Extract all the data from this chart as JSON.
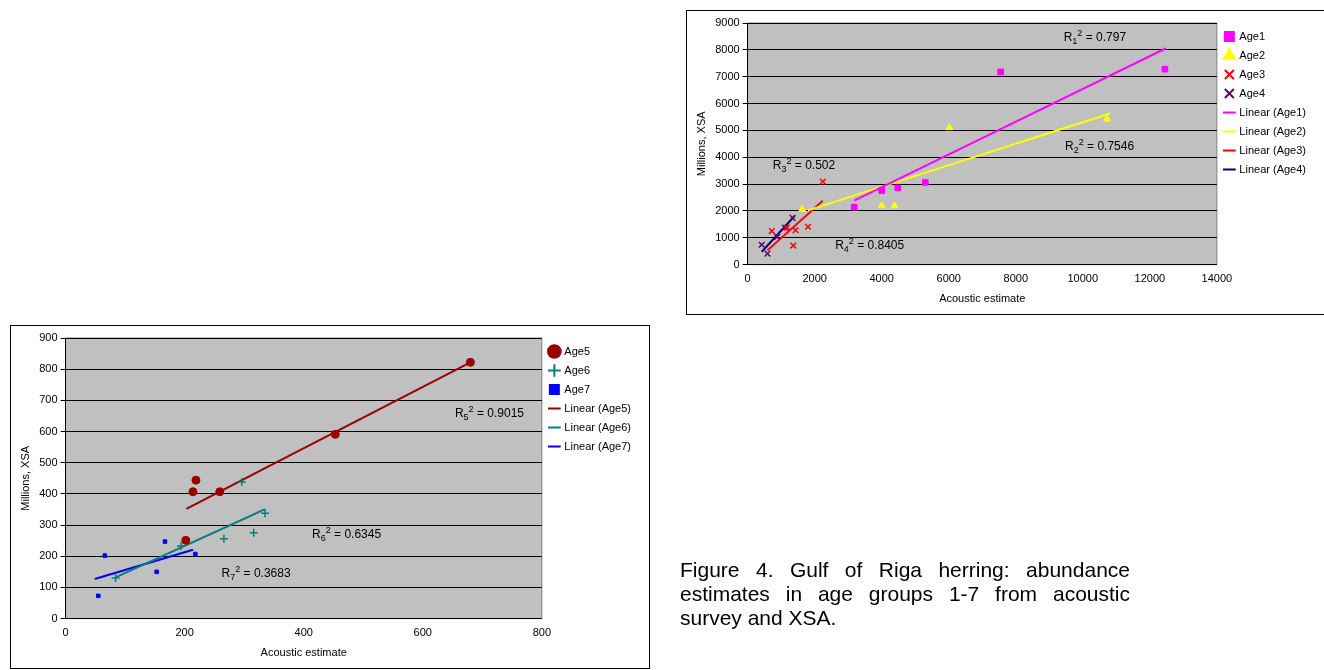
{
  "chart_data": [
    {
      "type": "scatter",
      "xlabel": "Acoustic estimate",
      "ylabel": "Millions, XSA",
      "xlim": [
        0,
        14000
      ],
      "xticks": [
        0,
        2000,
        4000,
        6000,
        8000,
        10000,
        12000,
        14000
      ],
      "ylim": [
        0,
        9000
      ],
      "yticks": [
        0,
        1000,
        2000,
        3000,
        4000,
        5000,
        6000,
        7000,
        8000,
        9000
      ],
      "grid": "y",
      "legend": "right",
      "series": [
        {
          "name": "Age1",
          "marker": "square",
          "color": "#ff00ff",
          "x": [
            3180,
            4000,
            4480,
            5300,
            7550,
            12450
          ],
          "values": [
            2140,
            2760,
            2860,
            3060,
            7180,
            7280
          ]
        },
        {
          "name": "Age2",
          "marker": "triangle",
          "color": "#ffff00",
          "x": [
            1630,
            4000,
            4380,
            6020,
            10720
          ],
          "values": [
            2060,
            2190,
            2190,
            5100,
            5420
          ]
        },
        {
          "name": "Age3",
          "marker": "cross",
          "color": "#ff0000",
          "x": [
            720,
            1170,
            1360,
            1430,
            1800,
            2240
          ],
          "values": [
            1250,
            1380,
            710,
            1280,
            1410,
            3090
          ]
        },
        {
          "name": "Age4",
          "marker": "cross",
          "color": "#660066",
          "x": [
            420,
            590,
            880,
            1110,
            1340
          ],
          "values": [
            740,
            410,
            1030,
            1380,
            1740
          ]
        },
        {
          "name": "Linear (Age1)",
          "type": "line",
          "marker": "none",
          "color": "#ff00ff",
          "x": [
            3180,
            12480
          ],
          "values": [
            2380,
            8060
          ]
        },
        {
          "name": "Linear (Age2)",
          "type": "line",
          "marker": "none",
          "color": "#ffff00",
          "x": [
            1800,
            10810
          ],
          "values": [
            2020,
            5630
          ]
        },
        {
          "name": "Linear (Age3)",
          "type": "line",
          "marker": "none",
          "color": "#ff0000",
          "x": [
            590,
            2240
          ],
          "values": [
            530,
            2380
          ]
        },
        {
          "name": "Linear (Age4)",
          "type": "line",
          "marker": "none",
          "color": "#000080",
          "x": [
            420,
            1400
          ],
          "values": [
            480,
            1810
          ]
        }
      ],
      "annotations": [
        "R$_{1}$$^{2}$ = 0.797",
        "R$_{2}$$^{2}$ = 0.7546",
        "R$_{3}$$^{2}$ = 0.502",
        "R$_{4}$$^{2}$ = 0.8405"
      ]
    },
    {
      "type": "scatter",
      "xlabel": "Acoustic estimate",
      "ylabel": "Millions, XSA",
      "xlim": [
        0,
        800
      ],
      "xticks": [
        0,
        200,
        400,
        600,
        800
      ],
      "ylim": [
        0,
        900
      ],
      "yticks": [
        0,
        100,
        200,
        300,
        400,
        500,
        600,
        700,
        800,
        900
      ],
      "grid": "y",
      "legend": "right",
      "series": [
        {
          "name": "Age5",
          "marker": "circle",
          "color": "#990000",
          "x": [
            202,
            214,
            219,
            259,
            453,
            680
          ],
          "values": [
            251,
            407,
            444,
            407,
            591,
            822
          ]
        },
        {
          "name": "Age6",
          "marker": "plus",
          "color": "#008080",
          "x": [
            84,
            194,
            266,
            296,
            316,
            335
          ],
          "values": [
            130,
            233,
            256,
            438,
            275,
            338
          ]
        },
        {
          "name": "Age7",
          "marker": "square",
          "color": "#0000ff",
          "x": [
            55,
            66,
            153,
            167,
            218
          ],
          "values": [
            73,
            202,
            150,
            247,
            207
          ]
        },
        {
          "name": "Linear (Age5)",
          "type": "line",
          "marker": "none",
          "color": "#990000",
          "x": [
            203,
            680
          ],
          "values": [
            352,
            822
          ]
        },
        {
          "name": "Linear (Age6)",
          "type": "line",
          "marker": "none",
          "color": "#008080",
          "x": [
            84,
            335
          ],
          "values": [
            132,
            351
          ]
        },
        {
          "name": "Linear (Age7)",
          "type": "line",
          "marker": "none",
          "color": "#0000ff",
          "x": [
            49,
            214
          ],
          "values": [
            127,
            221
          ]
        }
      ],
      "annotations": [
        "R$_{5}$$^{2}$ = 0.9015",
        "R$_{6}$$^{2}$ = 0.6345",
        "R$_{7}$$^{2}$ = 0.3683",
        "Figure 4. Gulf of Riga herring: abundance estimates in age groups 1-7 from acoustic survey and XSA."
      ]
    }
  ]
}
